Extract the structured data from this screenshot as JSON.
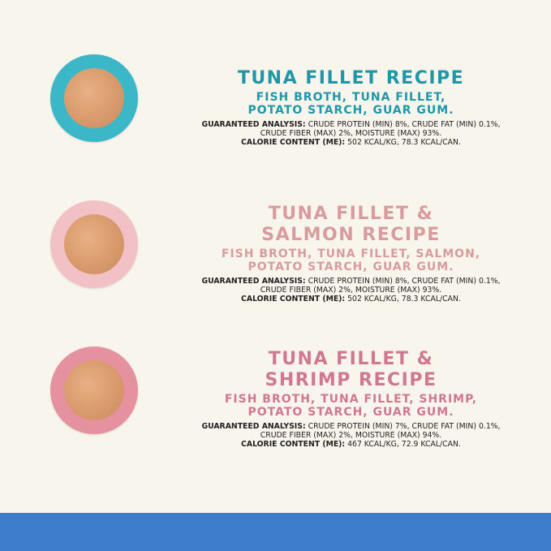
{
  "colors": {
    "background": "#f8f5ec",
    "footer_bar": "#3e7dcc"
  },
  "recipes": [
    {
      "title": "TUNA FILLET RECIPE",
      "ingredients_line1": "FISH BROTH, TUNA FILLET,",
      "ingredients_line2": "POTATO STARCH, GUAR GUM.",
      "analysis_label": "GUARANTEED ANALYSIS:",
      "analysis_line1": " CRUDE PROTEIN (MIN) 8%, CRUDE FAT (MIN) 0.1%,",
      "analysis_line2": "CRUDE FIBER (MAX) 2%, MOISTURE (MAX) 93%.",
      "calorie_label": "CALORIE CONTENT (ME):",
      "calorie_value": " 502 KCAL/KG, 78.3 KCAL/CAN.",
      "text_color": "#1f97a8",
      "bowl_color": "#3bb7c8"
    },
    {
      "title_line1": "TUNA FILLET &",
      "title_line2": "SALMON RECIPE",
      "ingredients_line1": "FISH BROTH, TUNA FILLET, SALMON,",
      "ingredients_line2": "POTATO STARCH, GUAR GUM.",
      "analysis_label": "GUARANTEED ANALYSIS:",
      "analysis_line1": " CRUDE PROTEIN (MIN) 8%, CRUDE FAT (MIN) 0.1%,",
      "analysis_line2": "CRUDE FIBER (MAX) 2%, MOISTURE (MAX) 93%.",
      "calorie_label": "CALORIE CONTENT (ME):",
      "calorie_value": " 502 KCAL/KG, 78.3 KCAL/CAN.",
      "text_color": "#d89c9f",
      "bowl_color": "#f1c1c6"
    },
    {
      "title_line1": "TUNA FILLET &",
      "title_line2": "SHRIMP RECIPE",
      "ingredients_line1": "FISH BROTH, TUNA FILLET, SHRIMP,",
      "ingredients_line2": "POTATO STARCH, GUAR GUM.",
      "analysis_label": "GUARANTEED ANALYSIS:",
      "analysis_line1": " CRUDE PROTEIN (MIN) 7%, CRUDE FAT (MIN) 0.1%,",
      "analysis_line2": "CRUDE FIBER (MAX) 2%, MOISTURE (MAX) 94%.",
      "calorie_label": "CALORIE CONTENT (ME):",
      "calorie_value": " 467 KCAL/KG, 72.9 KCAL/CAN.",
      "text_color": "#cf7890",
      "bowl_color": "#e6919f"
    }
  ]
}
